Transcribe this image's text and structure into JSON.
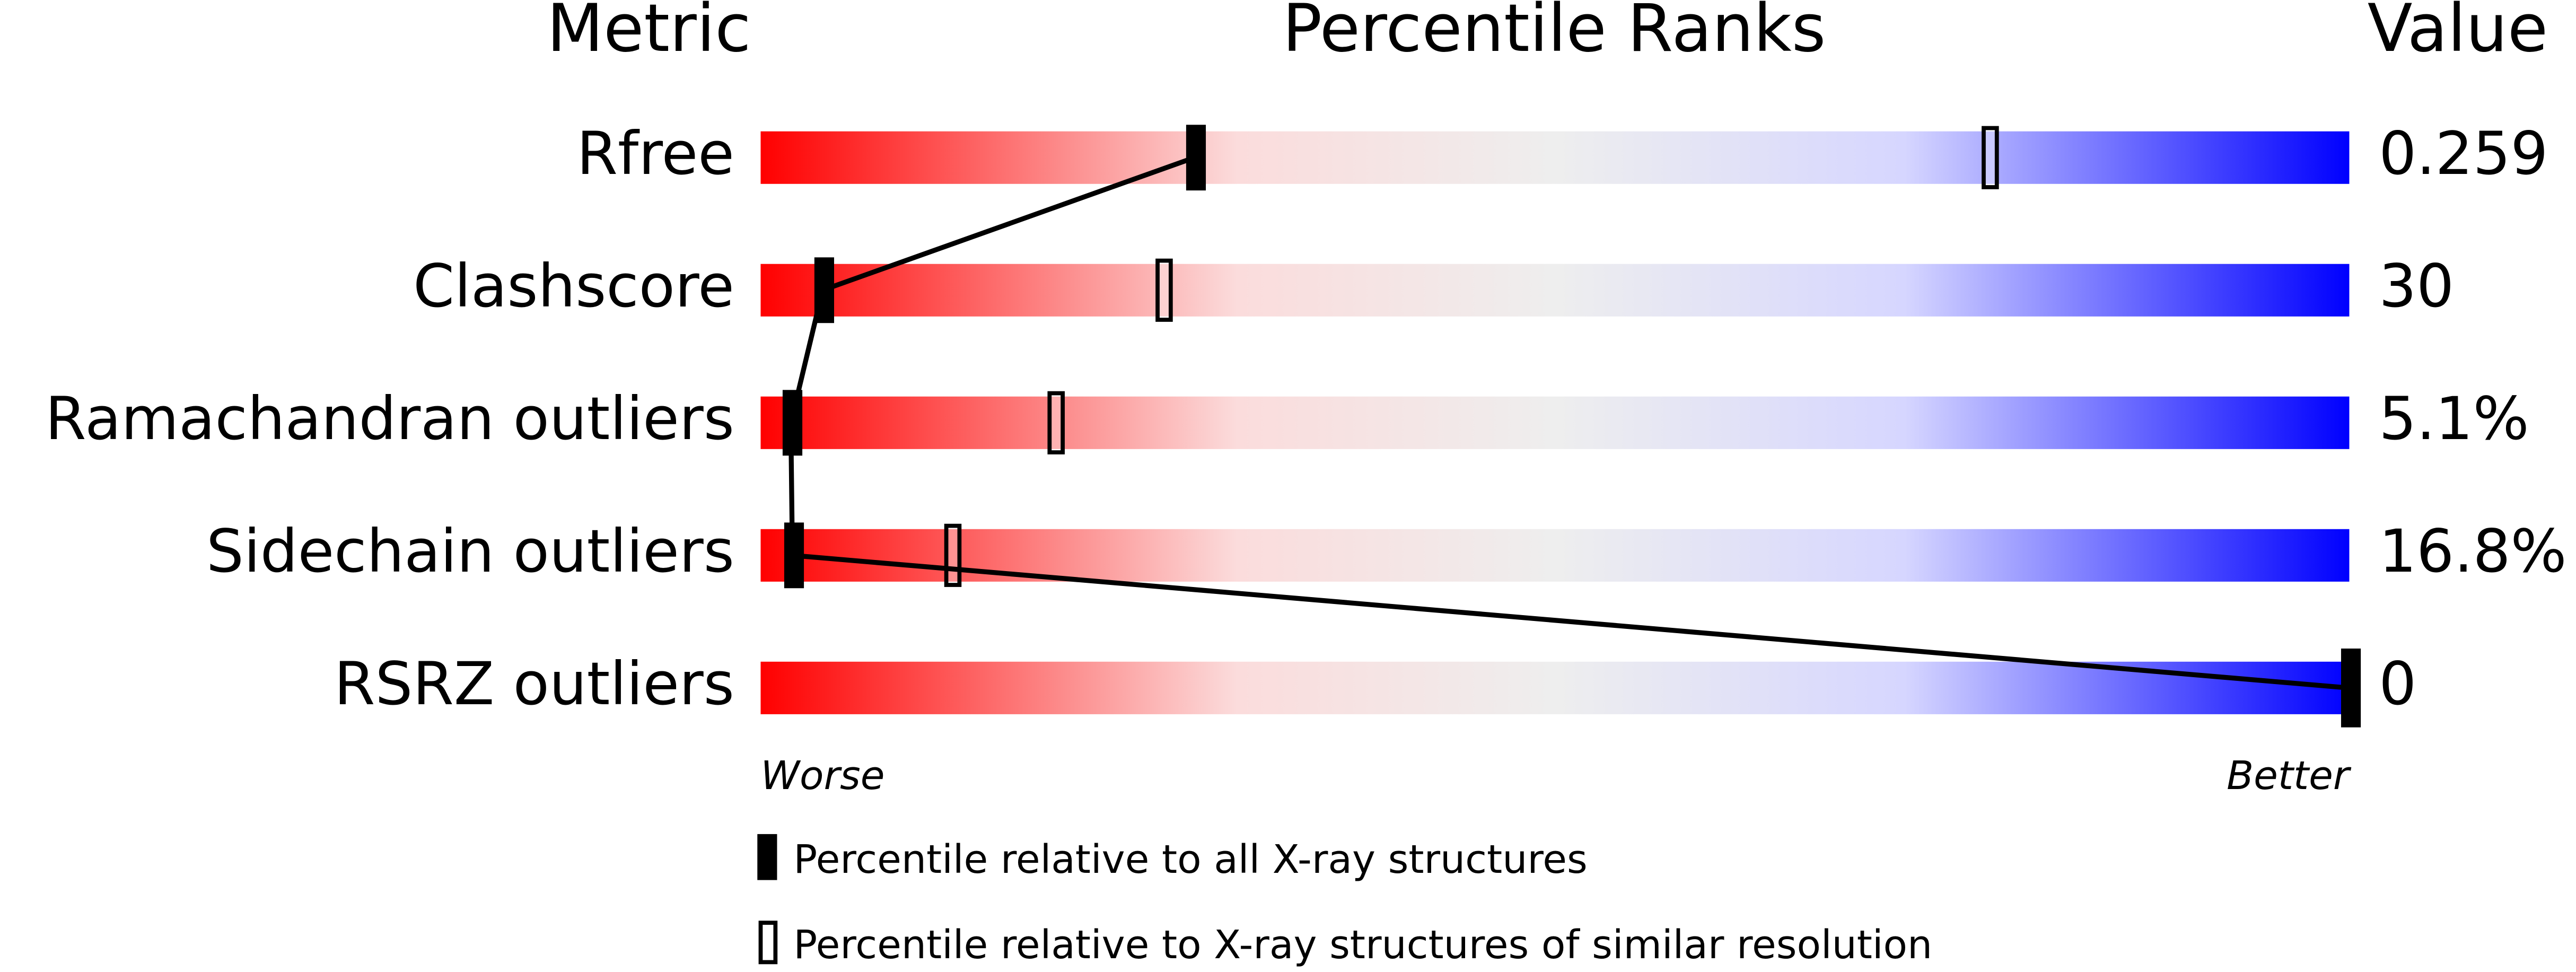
{
  "chart_data": {
    "type": "percentile-slider",
    "headers": {
      "metric": "Metric",
      "ranks": "Percentile Ranks",
      "value": "Value"
    },
    "xlim": [
      0,
      100
    ],
    "metrics": [
      {
        "name": "Rfree",
        "value": "0.259",
        "all": 27.3,
        "similar": 77.4
      },
      {
        "name": "Clashscore",
        "value": "30",
        "all": 3.9,
        "similar": 25.4
      },
      {
        "name": "Ramachandran outliers",
        "value": "5.1%",
        "all": 1.9,
        "similar": 18.6
      },
      {
        "name": "Sidechain outliers",
        "value": "16.8%",
        "all": 2.0,
        "similar": 12.1
      },
      {
        "name": "RSRZ outliers",
        "value": "0",
        "all": 100
      }
    ],
    "axis_labels": {
      "low": "Worse",
      "high": "Better"
    },
    "legend": {
      "all": "Percentile relative to all X-ray structures",
      "similar": "Percentile relative to X-ray structures of similar resolution"
    }
  }
}
